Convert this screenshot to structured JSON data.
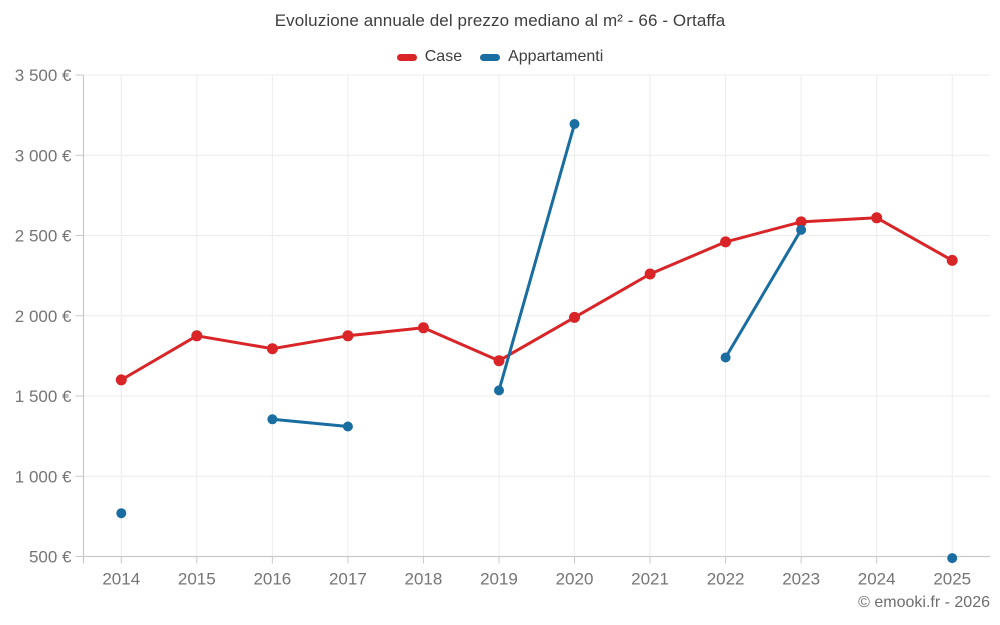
{
  "title": "Evoluzione annuale del prezzo mediano al m² - 66 - Ortaffa",
  "footer": {
    "copyright": "© emooki.fr - 2026"
  },
  "colors": {
    "case": "#d92528",
    "appartamenti": "#1a6da1",
    "grid": "#ececec",
    "axis": "#c9c9c9",
    "tick_label": "#757575"
  },
  "chart_data": {
    "type": "line",
    "title": "Evoluzione annuale del prezzo mediano al m² - 66 - Ortaffa",
    "categories": [
      "2014",
      "2015",
      "2016",
      "2017",
      "2018",
      "2019",
      "2020",
      "2021",
      "2022",
      "2023",
      "2024",
      "2025"
    ],
    "series": [
      {
        "name": "Case",
        "color": "#d92528",
        "point_radius": 5.5,
        "values": [
          1600,
          1875,
          1795,
          1875,
          1925,
          1720,
          1990,
          2260,
          2460,
          2585,
          2610,
          2345
        ]
      },
      {
        "name": "Appartamenti",
        "color": "#1a6da1",
        "point_radius": 5,
        "values": [
          770,
          null,
          1355,
          1310,
          null,
          1535,
          3195,
          null,
          1740,
          2535,
          null,
          490
        ]
      }
    ],
    "xlabel": "",
    "ylabel": "",
    "ylim": [
      500,
      3500
    ],
    "y_ticks": [
      500,
      1000,
      1500,
      2000,
      2500,
      3000,
      3500
    ],
    "y_tick_labels": [
      "500 €",
      "1 000 €",
      "1 500 €",
      "2 000 €",
      "2 500 €",
      "3 000 €",
      "3 500 €"
    ],
    "grid": true,
    "legend_position": "top"
  }
}
